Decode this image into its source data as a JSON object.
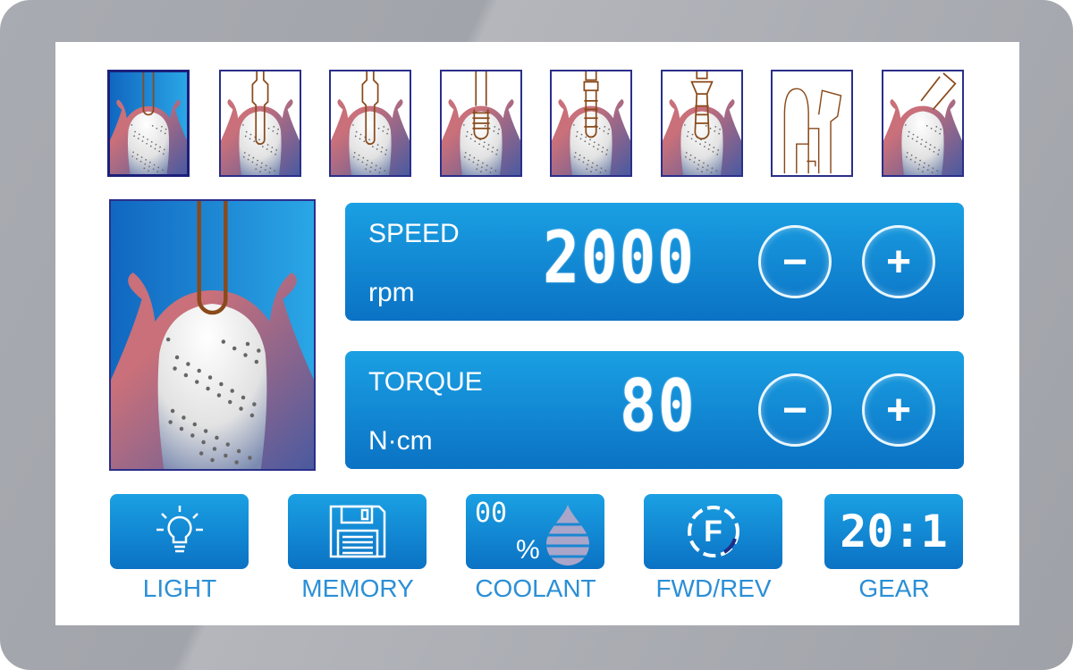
{
  "thumbnails": [
    {
      "name": "gum-opening",
      "active": true
    },
    {
      "name": "pilot-drill",
      "active": false
    },
    {
      "name": "twist-drill",
      "active": false
    },
    {
      "name": "tap",
      "active": false
    },
    {
      "name": "implant-placement",
      "active": false
    },
    {
      "name": "abutment",
      "active": false
    },
    {
      "name": "prosthetic-tools",
      "active": false
    },
    {
      "name": "irrigation",
      "active": false
    }
  ],
  "speed": {
    "label": "SPEED",
    "unit": "rpm",
    "value": "2000",
    "minus": "−",
    "plus": "+"
  },
  "torque": {
    "label": "TORQUE",
    "unit": "N·cm",
    "value": "80",
    "minus": "−",
    "plus": "+"
  },
  "bottom": {
    "light": {
      "label": "LIGHT",
      "icon": "lightbulb-icon"
    },
    "memory": {
      "label": "MEMORY",
      "icon": "floppy-disk-icon"
    },
    "coolant": {
      "label": "COOLANT",
      "value": "00",
      "unit": "%",
      "icon": "water-drop-icon"
    },
    "fwdrev": {
      "label": "FWD/REV",
      "value": "F",
      "icon": "direction-circle-icon"
    },
    "gear": {
      "label": "GEAR",
      "value": "20:1"
    }
  },
  "colors": {
    "panel": "#0b72c4",
    "label": "#2b8fd6",
    "border": "#2a2f8a",
    "tool": "#8a4a1a",
    "gum": "#c9707a"
  }
}
